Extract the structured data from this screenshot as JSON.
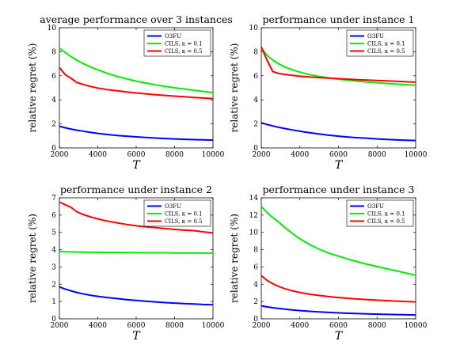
{
  "colors": {
    "O3FU": "#0000ff",
    "CILS01": "#00ee00",
    "CILS05": "#ff0000"
  },
  "chart_data": [
    {
      "type": "line",
      "title": "average performance over 3 instances",
      "xlabel": "T",
      "ylabel": "relative regret (%)",
      "xlim": [
        2000,
        10000
      ],
      "ylim": [
        0,
        10
      ],
      "xticks": [
        "2000",
        "4000",
        "6000",
        "8000",
        "10000"
      ],
      "yticks": [
        "0",
        "2",
        "4",
        "6",
        "8",
        "10"
      ],
      "legend_position": "top-right",
      "x": [
        2000,
        2300,
        2600,
        2900,
        3200,
        3600,
        4000,
        4500,
        5000,
        5500,
        6000,
        6500,
        7000,
        7500,
        8000,
        8500,
        9000,
        9500,
        10000
      ],
      "series": [
        {
          "name": "O3FU",
          "color_key": "O3FU",
          "values": [
            1.8,
            1.68,
            1.57,
            1.48,
            1.4,
            1.3,
            1.21,
            1.12,
            1.04,
            0.98,
            0.92,
            0.87,
            0.82,
            0.78,
            0.75,
            0.72,
            0.69,
            0.67,
            0.65
          ]
        },
        {
          "name": "CILS, κ = 0.1",
          "color_key": "CILS01",
          "values": [
            8.3,
            7.95,
            7.6,
            7.3,
            7.05,
            6.75,
            6.5,
            6.2,
            5.95,
            5.75,
            5.55,
            5.4,
            5.25,
            5.12,
            5.0,
            4.9,
            4.8,
            4.7,
            4.6
          ]
        },
        {
          "name": "CILS, κ = 0.5",
          "color_key": "CILS05",
          "values": [
            6.7,
            6.1,
            5.8,
            5.45,
            5.3,
            5.12,
            4.98,
            4.85,
            4.75,
            4.65,
            4.57,
            4.5,
            4.43,
            4.37,
            4.31,
            4.26,
            4.2,
            4.15,
            4.1
          ]
        }
      ]
    },
    {
      "type": "line",
      "title": "performance under instance 1",
      "xlabel": "T",
      "ylabel": "relative regret (%)",
      "xlim": [
        2000,
        10000
      ],
      "ylim": [
        0,
        10
      ],
      "xticks": [
        "2000",
        "4000",
        "6000",
        "8000",
        "10000"
      ],
      "yticks": [
        "0",
        "2",
        "4",
        "6",
        "8",
        "10"
      ],
      "legend_position": "top-right",
      "x": [
        2000,
        2300,
        2600,
        2900,
        3200,
        3600,
        4000,
        4500,
        5000,
        5500,
        6000,
        6500,
        7000,
        7500,
        8000,
        8500,
        9000,
        9500,
        10000
      ],
      "series": [
        {
          "name": "O3FU",
          "color_key": "O3FU",
          "values": [
            2.1,
            1.95,
            1.83,
            1.72,
            1.62,
            1.5,
            1.39,
            1.27,
            1.16,
            1.06,
            0.98,
            0.91,
            0.85,
            0.8,
            0.75,
            0.71,
            0.67,
            0.64,
            0.62
          ]
        },
        {
          "name": "CILS, κ = 0.1",
          "color_key": "CILS01",
          "values": [
            8.3,
            7.7,
            7.3,
            7.0,
            6.75,
            6.5,
            6.3,
            6.1,
            5.95,
            5.82,
            5.72,
            5.63,
            5.55,
            5.48,
            5.42,
            5.36,
            5.31,
            5.26,
            5.22
          ]
        },
        {
          "name": "CILS, κ = 0.5",
          "color_key": "CILS05",
          "values": [
            8.4,
            7.3,
            6.35,
            6.2,
            6.12,
            6.03,
            5.96,
            5.9,
            5.85,
            5.8,
            5.76,
            5.72,
            5.68,
            5.64,
            5.61,
            5.57,
            5.54,
            5.5,
            5.47
          ]
        }
      ]
    },
    {
      "type": "line",
      "title": "performance under instance 2",
      "xlabel": "T",
      "ylabel": "relative regret (%)",
      "xlim": [
        2000,
        10000
      ],
      "ylim": [
        0,
        7
      ],
      "xticks": [
        "2000",
        "4000",
        "6000",
        "8000",
        "10000"
      ],
      "yticks": [
        "0",
        "1",
        "2",
        "3",
        "4",
        "5",
        "6",
        "7"
      ],
      "legend_position": "top-right",
      "x": [
        2000,
        2300,
        2600,
        2900,
        3200,
        3600,
        4000,
        4500,
        5000,
        5500,
        6000,
        6500,
        7000,
        7500,
        8000,
        8500,
        9000,
        9500,
        10000
      ],
      "series": [
        {
          "name": "O3FU",
          "color_key": "O3FU",
          "values": [
            1.85,
            1.72,
            1.62,
            1.53,
            1.45,
            1.37,
            1.3,
            1.23,
            1.17,
            1.11,
            1.06,
            1.02,
            0.98,
            0.94,
            0.91,
            0.88,
            0.86,
            0.83,
            0.81
          ]
        },
        {
          "name": "CILS, κ = 0.1",
          "color_key": "CILS01",
          "values": [
            3.9,
            3.88,
            3.87,
            3.86,
            3.86,
            3.85,
            3.85,
            3.84,
            3.84,
            3.83,
            3.83,
            3.82,
            3.82,
            3.82,
            3.81,
            3.81,
            3.81,
            3.8,
            3.8
          ]
        },
        {
          "name": "CILS, κ = 0.5",
          "color_key": "CILS05",
          "values": [
            6.75,
            6.6,
            6.45,
            6.2,
            6.05,
            5.9,
            5.78,
            5.65,
            5.55,
            5.46,
            5.38,
            5.32,
            5.27,
            5.22,
            5.17,
            5.13,
            5.1,
            5.03,
            4.97
          ]
        }
      ]
    },
    {
      "type": "line",
      "title": "performance under instance 3",
      "xlabel": "T",
      "ylabel": "relative regret (%)",
      "xlim": [
        2000,
        10000
      ],
      "ylim": [
        0,
        14
      ],
      "xticks": [
        "2000",
        "4000",
        "6000",
        "8000",
        "10000"
      ],
      "yticks": [
        "0",
        "2",
        "4",
        "6",
        "8",
        "10",
        "12",
        "14"
      ],
      "legend_position": "top-right",
      "x": [
        2000,
        2300,
        2600,
        2900,
        3200,
        3600,
        4000,
        4500,
        5000,
        5500,
        6000,
        6500,
        7000,
        7500,
        8000,
        8500,
        9000,
        9500,
        10000
      ],
      "series": [
        {
          "name": "O3FU",
          "color_key": "O3FU",
          "values": [
            1.5,
            1.38,
            1.28,
            1.2,
            1.12,
            1.03,
            0.95,
            0.87,
            0.8,
            0.74,
            0.69,
            0.64,
            0.6,
            0.57,
            0.54,
            0.51,
            0.49,
            0.47,
            0.45
          ]
        },
        {
          "name": "CILS, κ = 0.1",
          "color_key": "CILS01",
          "values": [
            13.0,
            12.3,
            11.7,
            11.2,
            10.6,
            9.9,
            9.25,
            8.6,
            8.05,
            7.6,
            7.25,
            6.9,
            6.6,
            6.3,
            6.05,
            5.8,
            5.55,
            5.3,
            5.05
          ]
        },
        {
          "name": "CILS, κ = 0.5",
          "color_key": "CILS05",
          "values": [
            5.0,
            4.45,
            4.05,
            3.75,
            3.5,
            3.25,
            3.05,
            2.85,
            2.7,
            2.57,
            2.46,
            2.37,
            2.29,
            2.22,
            2.16,
            2.1,
            2.05,
            2.0,
            1.96
          ]
        }
      ]
    }
  ]
}
